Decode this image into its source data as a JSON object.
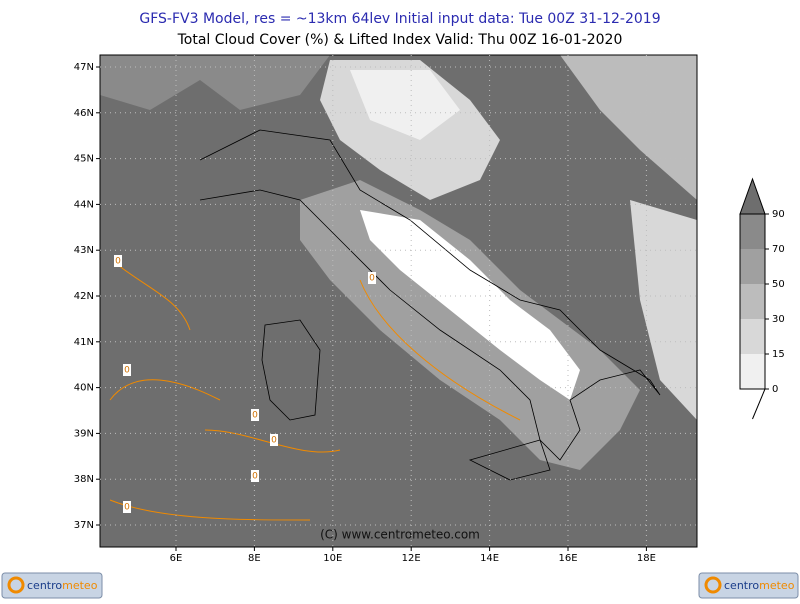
{
  "header": {
    "line1": "GFS-FV3 Model, res = ~13km 64lev   Initial input data: Tue 00Z 31-12-2019",
    "line2": "Total Cloud Cover (%) & Lifted Index Valid: Thu 00Z 16-01-2020"
  },
  "map": {
    "lat_ticks": [
      {
        "value": 47,
        "label": "47N"
      },
      {
        "value": 46,
        "label": "46N"
      },
      {
        "value": 45,
        "label": "45N"
      },
      {
        "value": 44,
        "label": "44N"
      },
      {
        "value": 43,
        "label": "43N"
      },
      {
        "value": 42,
        "label": "42N"
      },
      {
        "value": 41,
        "label": "41N"
      },
      {
        "value": 40,
        "label": "40N"
      },
      {
        "value": 39,
        "label": "39N"
      },
      {
        "value": 38,
        "label": "38N"
      },
      {
        "value": 37,
        "label": "37N"
      }
    ],
    "lon_ticks": [
      {
        "value": 6,
        "label": "6E"
      },
      {
        "value": 8,
        "label": "8E"
      },
      {
        "value": 10,
        "label": "10E"
      },
      {
        "value": 12,
        "label": "12E"
      },
      {
        "value": 14,
        "label": "14E"
      },
      {
        "value": 16,
        "label": "16E"
      },
      {
        "value": 18,
        "label": "18E"
      }
    ],
    "contour_labels": [
      0,
      0,
      0,
      0,
      0,
      0,
      0
    ],
    "credit": "(C) www.centrometeo.com"
  },
  "legend": {
    "levels": [
      0,
      15,
      30,
      50,
      70,
      90
    ],
    "colors": [
      "#f0f0f0",
      "#d8d8d8",
      "#bcbcbc",
      "#a0a0a0",
      "#8a8a8a",
      "#6e6e6e"
    ]
  },
  "logos": [
    {
      "part1": "centro",
      "part2": "meteo"
    },
    {
      "part1": "centro",
      "part2": "meteo"
    }
  ]
}
